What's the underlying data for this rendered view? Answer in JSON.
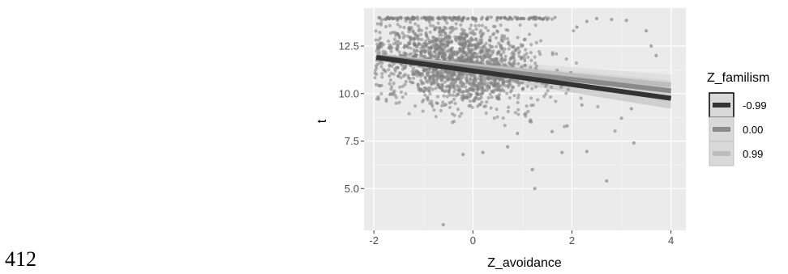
{
  "page_number": "412",
  "chart_data": {
    "type": "scatter",
    "xlabel": "Z_avoidance",
    "ylabel": "t",
    "xlim": [
      -2.2,
      4.3
    ],
    "ylim": [
      2.8,
      14.5
    ],
    "x_ticks": [
      -2,
      0,
      2,
      4
    ],
    "x_tick_labels": [
      "-2",
      "0",
      "2",
      "4"
    ],
    "y_ticks": [
      5.0,
      7.5,
      10.0,
      12.5
    ],
    "y_tick_labels": [
      "5.0",
      "7.5",
      "10.0",
      "12.5"
    ],
    "grid": true,
    "legend_position": "right",
    "legend_title": "Z_familism",
    "points_color": "#7f7f7f",
    "series": [
      {
        "name": "-0.99",
        "type": "line",
        "x": [
          -1.95,
          4.0
        ],
        "y": [
          11.9,
          9.75
        ],
        "color": "#333333",
        "ci_color": "#b8b8b8"
      },
      {
        "name": "0.00",
        "type": "line",
        "x": [
          -1.95,
          4.0
        ],
        "y": [
          11.93,
          10.15
        ],
        "color": "#8a8a8a",
        "ci_color": "#c8c8c8"
      },
      {
        "name": "0.99",
        "type": "line",
        "x": [
          -1.95,
          4.0
        ],
        "y": [
          11.96,
          10.45
        ],
        "color": "#bdbdbd",
        "ci_color": "#d6d6d6"
      }
    ],
    "scatter_sample": [
      {
        "x": -0.6,
        "y": 3.1
      },
      {
        "x": 1.25,
        "y": 5.0
      },
      {
        "x": 1.2,
        "y": 6.0
      },
      {
        "x": 2.7,
        "y": 5.4
      },
      {
        "x": -0.2,
        "y": 6.8
      },
      {
        "x": 0.2,
        "y": 6.9
      },
      {
        "x": 0.7,
        "y": 7.2
      },
      {
        "x": 3.25,
        "y": 7.4
      },
      {
        "x": 2.3,
        "y": 6.95
      },
      {
        "x": 1.8,
        "y": 6.9
      },
      {
        "x": 3.0,
        "y": 8.7
      },
      {
        "x": 2.5,
        "y": 13.95
      },
      {
        "x": 3.1,
        "y": 13.85
      },
      {
        "x": 3.5,
        "y": 13.3
      },
      {
        "x": 3.6,
        "y": 12.5
      },
      {
        "x": 3.7,
        "y": 12.0
      },
      {
        "x": 2.8,
        "y": 13.9
      },
      {
        "x": 2.3,
        "y": 13.8
      },
      {
        "x": -1.9,
        "y": 14.0
      },
      {
        "x": -1.2,
        "y": 14.0
      },
      {
        "x": 0.5,
        "y": 14.0
      },
      {
        "x": 1.5,
        "y": 13.9
      },
      {
        "x": 2.1,
        "y": 13.5
      },
      {
        "x": 3.2,
        "y": 9.2
      },
      {
        "x": 1.9,
        "y": 8.3
      },
      {
        "x": 2.2,
        "y": 9.4
      },
      {
        "x": 1.6,
        "y": 8.0
      },
      {
        "x": 0.9,
        "y": 7.9
      }
    ]
  }
}
